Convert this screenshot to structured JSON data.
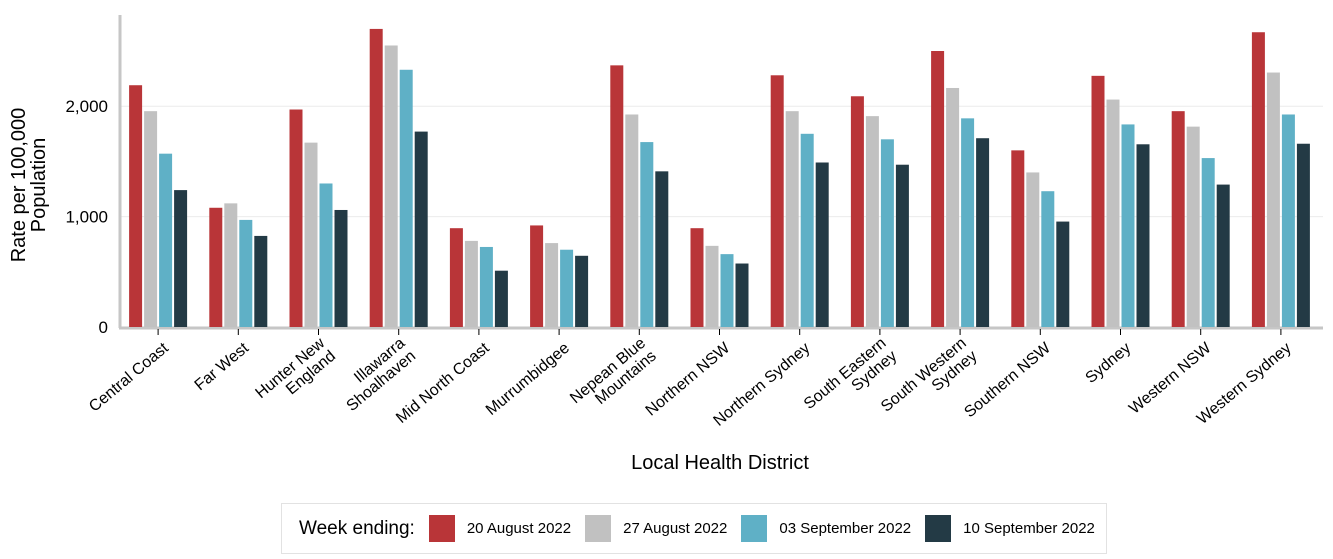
{
  "colors": {
    "20 August 2022": "#b93538",
    "27 August 2022": "#c1c1c1",
    "03 September 2022": "#5fb0c6",
    "10 September 2022": "#233a45",
    "axis": "#c6c6c6",
    "grid": "#ececec"
  },
  "legend": {
    "title": "Week ending:",
    "items": [
      {
        "label": "20 August 2022",
        "color": "#b93538"
      },
      {
        "label": "27 August 2022",
        "color": "#c1c1c1"
      },
      {
        "label": "03 September 2022",
        "color": "#5fb0c6"
      },
      {
        "label": "10 September 2022",
        "color": "#233a45"
      }
    ]
  },
  "chart_data": {
    "type": "bar",
    "title": "",
    "xlabel": "Local Health District",
    "ylabel_lines": [
      "Rate per 100,000",
      "Population"
    ],
    "ylim": [
      0,
      2800
    ],
    "yticks": [
      0,
      1000,
      2000
    ],
    "ytick_labels": [
      "0",
      "1,000",
      "2,000"
    ],
    "grid": true,
    "legend_position": "bottom",
    "categories": [
      "Central Coast",
      "Far West",
      "Hunter New England",
      "Illawarra Shoalhaven",
      "Mid North Coast",
      "Murrumbidgee",
      "Nepean Blue Mountains",
      "Northern NSW",
      "Northern Sydney",
      "South Eastern Sydney",
      "South Western Sydney",
      "Southern NSW",
      "Sydney",
      "Western NSW",
      "Western Sydney"
    ],
    "category_label_lines": [
      [
        "Central Coast"
      ],
      [
        "Far West"
      ],
      [
        "Hunter New",
        "England"
      ],
      [
        "Illawarra",
        "Shoalhaven"
      ],
      [
        "Mid North Coast"
      ],
      [
        "Murrumbidgee"
      ],
      [
        "Nepean Blue",
        "Mountains"
      ],
      [
        "Northern NSW"
      ],
      [
        "Northern Sydney"
      ],
      [
        "South Eastern",
        "Sydney"
      ],
      [
        "South Western",
        "Sydney"
      ],
      [
        "Southern NSW"
      ],
      [
        "Sydney"
      ],
      [
        "Western NSW"
      ],
      [
        "Western Sydney"
      ]
    ],
    "series": [
      {
        "name": "20 August 2022",
        "values": [
          2190,
          1080,
          1970,
          2700,
          895,
          920,
          2370,
          895,
          2280,
          2090,
          2500,
          1600,
          2275,
          1955,
          2670
        ]
      },
      {
        "name": "27 August 2022",
        "values": [
          1955,
          1120,
          1670,
          2550,
          780,
          760,
          1925,
          735,
          1955,
          1910,
          2165,
          1400,
          2060,
          1815,
          2305
        ]
      },
      {
        "name": "03 September 2022",
        "values": [
          1570,
          970,
          1300,
          2330,
          725,
          700,
          1675,
          660,
          1750,
          1700,
          1890,
          1230,
          1835,
          1530,
          1925
        ]
      },
      {
        "name": "10 September 2022",
        "values": [
          1240,
          825,
          1060,
          1770,
          510,
          645,
          1410,
          575,
          1490,
          1470,
          1710,
          955,
          1655,
          1290,
          1660
        ]
      }
    ]
  }
}
